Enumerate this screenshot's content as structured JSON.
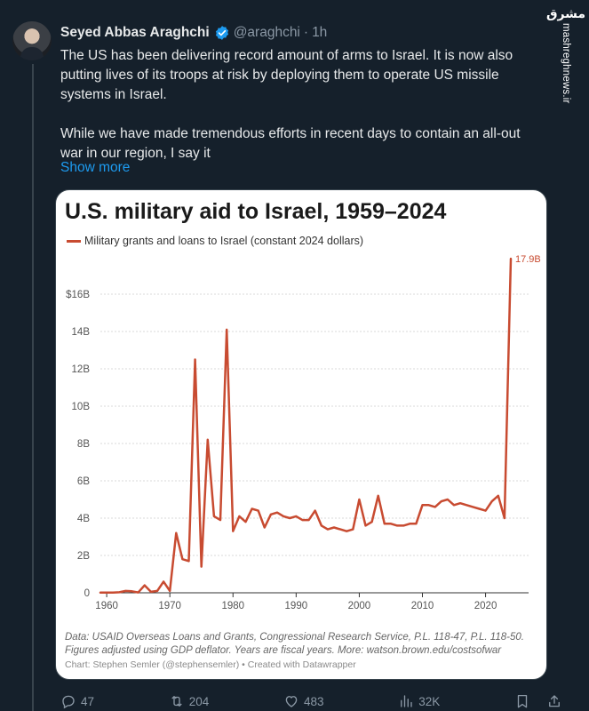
{
  "tweet": {
    "author_name": "Seyed Abbas Araghchi",
    "handle": "@araghchi",
    "separator": "·",
    "time": "1h",
    "paragraph1": "The US has been delivering record amount of arms to Israel. It is now also putting lives of its troops at risk by deploying them to operate US missile systems in Israel.",
    "paragraph2": "While we have made tremendous efforts in recent days to contain an all-out war in our region, I say it",
    "show_more": "Show more"
  },
  "watermark": {
    "logo": "مشرق",
    "site": "mashreghnews.ir"
  },
  "card": {
    "source_note": "Data: USAID Overseas Loans and Grants, Congressional Research Service, P.L. 118-47, P.L. 118-50. Figures adjusted using GDP deflator. Years are fiscal years. More: watson.brown.edu/costsofwar",
    "credit": "Chart: Stephen Semler (@stephensemler) • Created with Datawrapper"
  },
  "chart_data": {
    "type": "line",
    "title": "U.S. military aid to Israel, 1959–2024",
    "legend": "Military grants and loans to Israel (constant 2024 dollars)",
    "color": "#c84b31",
    "xlim": [
      1959,
      2024
    ],
    "ylim": [
      0,
      18
    ],
    "x_ticks": [
      1960,
      1970,
      1980,
      1990,
      2000,
      2010,
      2020
    ],
    "y_ticks": [
      {
        "value": 0,
        "label": "0"
      },
      {
        "value": 2,
        "label": "2B"
      },
      {
        "value": 4,
        "label": "4B"
      },
      {
        "value": 6,
        "label": "6B"
      },
      {
        "value": 8,
        "label": "8B"
      },
      {
        "value": 10,
        "label": "10B"
      },
      {
        "value": 12,
        "label": "12B"
      },
      {
        "value": 14,
        "label": "14B"
      },
      {
        "value": 16,
        "label": "$16B"
      }
    ],
    "end_label": "17.9B",
    "x": [
      1959,
      1960,
      1961,
      1962,
      1963,
      1964,
      1965,
      1966,
      1967,
      1968,
      1969,
      1970,
      1971,
      1972,
      1973,
      1974,
      1975,
      1976,
      1977,
      1978,
      1979,
      1980,
      1981,
      1982,
      1983,
      1984,
      1985,
      1986,
      1987,
      1988,
      1989,
      1990,
      1991,
      1992,
      1993,
      1994,
      1995,
      1996,
      1997,
      1998,
      1999,
      2000,
      2001,
      2002,
      2003,
      2004,
      2005,
      2006,
      2007,
      2008,
      2009,
      2010,
      2011,
      2012,
      2013,
      2014,
      2015,
      2016,
      2017,
      2018,
      2019,
      2020,
      2021,
      2022,
      2023,
      2024
    ],
    "y": [
      0.01,
      0.01,
      0.01,
      0.03,
      0.1,
      0.08,
      0.02,
      0.4,
      0.05,
      0.1,
      0.6,
      0.1,
      3.2,
      1.8,
      1.7,
      12.5,
      1.4,
      8.2,
      4.1,
      3.9,
      14.1,
      3.3,
      4.1,
      3.8,
      4.5,
      4.4,
      3.5,
      4.2,
      4.3,
      4.1,
      4.0,
      4.1,
      3.9,
      3.9,
      4.4,
      3.6,
      3.4,
      3.5,
      3.4,
      3.3,
      3.4,
      5.0,
      3.6,
      3.8,
      5.2,
      3.7,
      3.7,
      3.6,
      3.6,
      3.7,
      3.7,
      4.7,
      4.7,
      4.6,
      4.9,
      5.0,
      4.7,
      4.8,
      4.7,
      4.6,
      4.5,
      4.4,
      4.9,
      5.2,
      4.0,
      17.9
    ]
  },
  "actions": {
    "replies": "47",
    "reposts": "204",
    "likes": "483",
    "views": "32K"
  }
}
